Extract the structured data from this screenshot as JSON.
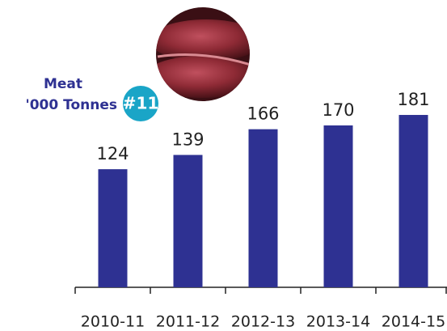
{
  "chart_data": {
    "type": "bar",
    "title": "Meat",
    "subtitle": "'000 Tonnes",
    "badge": "#11",
    "categories": [
      "2010-11",
      "2011-12",
      "2012-13",
      "2013-14",
      "2014-15"
    ],
    "values": [
      124,
      139,
      166,
      170,
      181
    ],
    "color": "#2e3192",
    "ylim": [
      0,
      300
    ]
  }
}
